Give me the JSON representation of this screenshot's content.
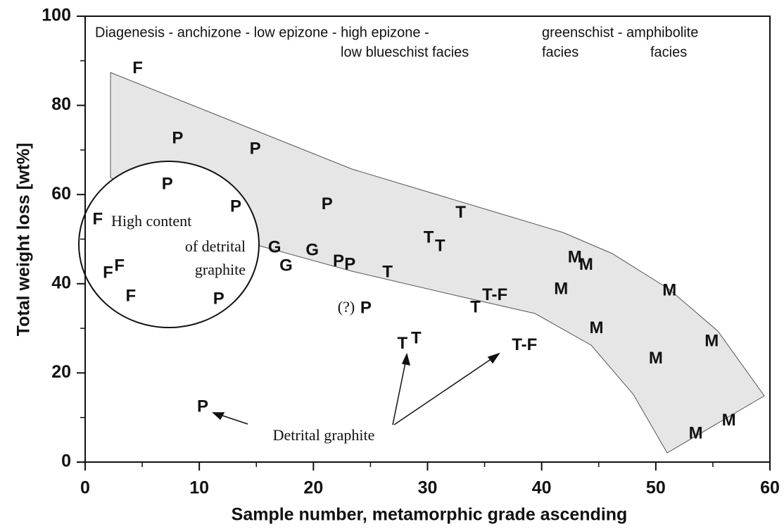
{
  "chart_data": {
    "type": "scatter",
    "x_label": "Sample number, metamorphic grade ascending",
    "y_label": "Total weight loss  [wt%]",
    "xlim": [
      0,
      60
    ],
    "ylim": [
      0,
      100
    ],
    "xticks": [
      0,
      10,
      20,
      30,
      40,
      50,
      60
    ],
    "yticks": [
      0,
      20,
      40,
      60,
      80,
      100
    ],
    "xminorticks": [
      5,
      15,
      25,
      35,
      45,
      55
    ],
    "yminorticks": [
      10,
      30,
      50,
      70,
      90
    ],
    "series": [
      {
        "name": "F",
        "color": "#111111",
        "x": [
          4.6,
          1.1,
          2.0,
          3.0,
          4.0
        ],
        "values": [
          88.2,
          54.3,
          42.3,
          43.9,
          37.1
        ]
      },
      {
        "name": "P",
        "color": "#111111",
        "x": [
          8.1,
          14.9,
          7.2,
          13.2,
          21.2,
          22.2,
          23.2,
          11.7,
          24.6,
          10.3
        ],
        "values": [
          72.5,
          70.1,
          62.2,
          57.2,
          57.7,
          44.9,
          44.2,
          36.5,
          34.4,
          12.3
        ]
      },
      {
        "name": "G",
        "color": "#111111",
        "x": [
          16.6,
          17.6,
          19.9
        ],
        "values": [
          48.0,
          43.9,
          47.4
        ]
      },
      {
        "name": "T",
        "color": "#111111",
        "x": [
          32.9,
          30.1,
          31.1,
          26.5,
          34.2,
          27.8,
          29.0
        ],
        "values": [
          55.8,
          50.2,
          48.3,
          42.5,
          34.6,
          26.4,
          27.6
        ]
      },
      {
        "name": "T-F",
        "color": "#111111",
        "x": [
          35.9,
          38.5
        ],
        "values": [
          37.3,
          26.1
        ]
      },
      {
        "name": "M",
        "color": "#111111",
        "x": [
          42.9,
          43.9,
          41.7,
          51.2,
          44.8,
          50.0,
          54.9,
          53.5,
          56.4
        ],
        "values": [
          45.8,
          44.1,
          38.7,
          38.4,
          29.9,
          23.1,
          27.0,
          6.3,
          9.2
        ]
      }
    ],
    "annotations": [
      "Diagenesis - anchizone - low epizone - high epizone -",
      "greenschist - amphibolite",
      "low blueschist facies",
      "facies",
      "facies",
      "High content",
      "of detrital",
      "graphite",
      "Detrital graphite",
      "(?)"
    ]
  }
}
